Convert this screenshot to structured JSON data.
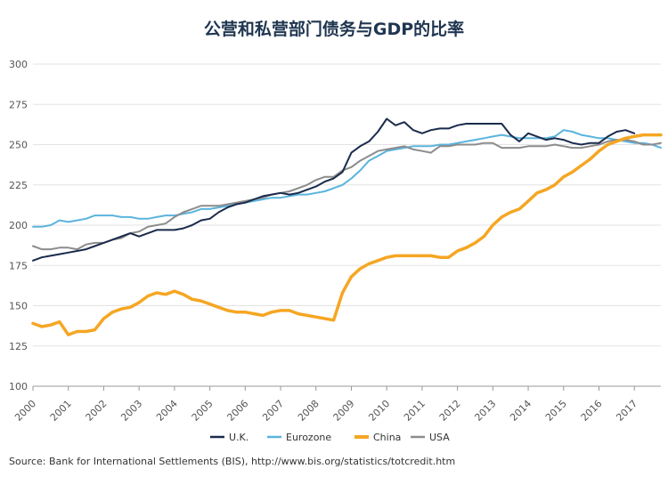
{
  "chart_data": {
    "type": "line",
    "title": "公营和私营部门债务与GDP的比率",
    "ylim": [
      100,
      300
    ],
    "y_ticks": [
      "100",
      "125",
      "150",
      "175",
      "200",
      "225",
      "250",
      "275",
      "300"
    ],
    "x_ticks": [
      "2000",
      "2001",
      "2002",
      "2003",
      "2004",
      "2005",
      "2006",
      "2007",
      "2008",
      "2009",
      "2010",
      "2011",
      "2012",
      "2013",
      "2014",
      "2015",
      "2016",
      "2017"
    ],
    "xlim": [
      2000,
      2017.75
    ],
    "grid": true,
    "legend_position": "bottom-center",
    "series": [
      {
        "name": "U.K.",
        "color": "#1a2b4c",
        "x": [
          2000,
          2000.25,
          2000.5,
          2000.75,
          2001,
          2001.25,
          2001.5,
          2001.75,
          2002,
          2002.25,
          2002.5,
          2002.75,
          2003,
          2003.25,
          2003.5,
          2003.75,
          2004,
          2004.25,
          2004.5,
          2004.75,
          2005,
          2005.25,
          2005.5,
          2005.75,
          2006,
          2006.25,
          2006.5,
          2006.75,
          2007,
          2007.25,
          2007.5,
          2007.75,
          2008,
          2008.25,
          2008.5,
          2008.75,
          2009,
          2009.25,
          2009.5,
          2009.75,
          2010,
          2010.25,
          2010.5,
          2010.75,
          2011,
          2011.25,
          2011.5,
          2011.75,
          2012,
          2012.25,
          2012.5,
          2012.75,
          2013,
          2013.25,
          2013.5,
          2013.75,
          2014,
          2014.25,
          2014.5,
          2014.75,
          2015,
          2015.25,
          2015.5,
          2015.75,
          2016,
          2016.25,
          2016.5,
          2016.75,
          2017
        ],
        "values": [
          178,
          180,
          181,
          182,
          183,
          184,
          185,
          187,
          189,
          191,
          193,
          195,
          193,
          195,
          197,
          197,
          197,
          198,
          200,
          203,
          204,
          208,
          211,
          213,
          214,
          216,
          218,
          219,
          220,
          219,
          220,
          222,
          224,
          227,
          229,
          233,
          245,
          249,
          252,
          258,
          266,
          262,
          264,
          259,
          257,
          259,
          260,
          260,
          262,
          263,
          263,
          263,
          263,
          263,
          256,
          252,
          257,
          255,
          253,
          254,
          253,
          251,
          250,
          251,
          251,
          255,
          258,
          259,
          257
        ]
      },
      {
        "name": "Eurozone",
        "color": "#5ab4dd",
        "x": [
          2000,
          2000.25,
          2000.5,
          2000.75,
          2001,
          2001.25,
          2001.5,
          2001.75,
          2002,
          2002.25,
          2002.5,
          2002.75,
          2003,
          2003.25,
          2003.5,
          2003.75,
          2004,
          2004.25,
          2004.5,
          2004.75,
          2005,
          2005.25,
          2005.5,
          2005.75,
          2006,
          2006.25,
          2006.5,
          2006.75,
          2007,
          2007.25,
          2007.5,
          2007.75,
          2008,
          2008.25,
          2008.5,
          2008.75,
          2009,
          2009.25,
          2009.5,
          2009.75,
          2010,
          2010.25,
          2010.5,
          2010.75,
          2011,
          2011.25,
          2011.5,
          2011.75,
          2012,
          2012.25,
          2012.5,
          2012.75,
          2013,
          2013.25,
          2013.5,
          2013.75,
          2014,
          2014.25,
          2014.5,
          2014.75,
          2015,
          2015.25,
          2015.5,
          2015.75,
          2016,
          2016.25,
          2016.5,
          2016.75,
          2017,
          2017.25,
          2017.5,
          2017.75
        ],
        "values": [
          199,
          199,
          200,
          203,
          202,
          203,
          204,
          206,
          206,
          206,
          205,
          205,
          204,
          204,
          205,
          206,
          206,
          207,
          208,
          210,
          210,
          211,
          212,
          213,
          214,
          215,
          216,
          217,
          217,
          218,
          219,
          219,
          220,
          221,
          223,
          225,
          229,
          234,
          240,
          243,
          246,
          247,
          248,
          249,
          249,
          249,
          250,
          250,
          251,
          252,
          253,
          254,
          255,
          256,
          255,
          254,
          254,
          254,
          254,
          255,
          259,
          258,
          256,
          255,
          254,
          254,
          253,
          252,
          251,
          251,
          250,
          248
        ]
      },
      {
        "name": "China",
        "color": "#f5a623",
        "x": [
          2000,
          2000.25,
          2000.5,
          2000.75,
          2001,
          2001.25,
          2001.5,
          2001.75,
          2002,
          2002.25,
          2002.5,
          2002.75,
          2003,
          2003.25,
          2003.5,
          2003.75,
          2004,
          2004.25,
          2004.5,
          2004.75,
          2005,
          2005.25,
          2005.5,
          2005.75,
          2006,
          2006.25,
          2006.5,
          2006.75,
          2007,
          2007.25,
          2007.5,
          2007.75,
          2008,
          2008.25,
          2008.5,
          2008.75,
          2009,
          2009.25,
          2009.5,
          2009.75,
          2010,
          2010.25,
          2010.5,
          2010.75,
          2011,
          2011.25,
          2011.5,
          2011.75,
          2012,
          2012.25,
          2012.5,
          2012.75,
          2013,
          2013.25,
          2013.5,
          2013.75,
          2014,
          2014.25,
          2014.5,
          2014.75,
          2015,
          2015.25,
          2015.5,
          2015.75,
          2016,
          2016.25,
          2016.5,
          2016.75,
          2017,
          2017.25,
          2017.5,
          2017.75
        ],
        "values": [
          139,
          137,
          138,
          140,
          132,
          134,
          134,
          135,
          142,
          146,
          148,
          149,
          152,
          156,
          158,
          157,
          159,
          157,
          154,
          153,
          151,
          149,
          147,
          146,
          146,
          145,
          144,
          146,
          147,
          147,
          145,
          144,
          143,
          142,
          141,
          158,
          168,
          173,
          176,
          178,
          180,
          181,
          181,
          181,
          181,
          181,
          180,
          180,
          184,
          186,
          189,
          193,
          200,
          205,
          208,
          210,
          215,
          220,
          222,
          225,
          230,
          233,
          237,
          241,
          246,
          250,
          252,
          254,
          255,
          256,
          256,
          256
        ]
      },
      {
        "name": "USA",
        "color": "#8c8c8c",
        "x": [
          2000,
          2000.25,
          2000.5,
          2000.75,
          2001,
          2001.25,
          2001.5,
          2001.75,
          2002,
          2002.25,
          2002.5,
          2002.75,
          2003,
          2003.25,
          2003.5,
          2003.75,
          2004,
          2004.25,
          2004.5,
          2004.75,
          2005,
          2005.25,
          2005.5,
          2005.75,
          2006,
          2006.25,
          2006.5,
          2006.75,
          2007,
          2007.25,
          2007.5,
          2007.75,
          2008,
          2008.25,
          2008.5,
          2008.75,
          2009,
          2009.25,
          2009.5,
          2009.75,
          2010,
          2010.25,
          2010.5,
          2010.75,
          2011,
          2011.25,
          2011.5,
          2011.75,
          2012,
          2012.25,
          2012.5,
          2012.75,
          2013,
          2013.25,
          2013.5,
          2013.75,
          2014,
          2014.25,
          2014.5,
          2014.75,
          2015,
          2015.25,
          2015.5,
          2015.75,
          2016,
          2016.25,
          2016.5,
          2016.75,
          2017,
          2017.25,
          2017.5,
          2017.75
        ],
        "values": [
          187,
          185,
          185,
          186,
          186,
          185,
          188,
          189,
          189,
          191,
          192,
          195,
          196,
          199,
          200,
          201,
          205,
          208,
          210,
          212,
          212,
          212,
          213,
          214,
          215,
          216,
          217,
          219,
          220,
          221,
          223,
          225,
          228,
          230,
          230,
          234,
          236,
          240,
          243,
          246,
          247,
          248,
          249,
          247,
          246,
          245,
          249,
          249,
          250,
          250,
          250,
          251,
          251,
          248,
          248,
          248,
          249,
          249,
          249,
          250,
          249,
          248,
          248,
          249,
          250,
          252,
          253,
          253,
          252,
          250,
          250,
          251
        ]
      }
    ],
    "source": "Source: Bank for International Settlements (BIS), http://www.bis.org/statistics/totcredit.htm"
  }
}
